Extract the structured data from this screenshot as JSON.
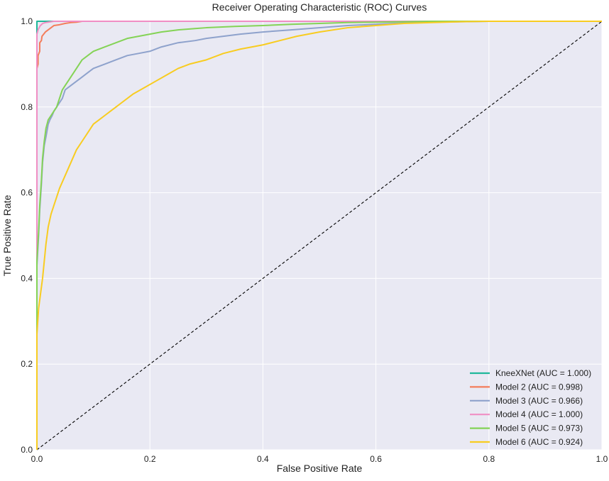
{
  "chart_data": {
    "type": "line",
    "title": "Receiver Operating Characteristic (ROC) Curves",
    "xlabel": "False Positive Rate",
    "ylabel": "True Positive Rate",
    "xlim": [
      0.0,
      1.0
    ],
    "ylim": [
      0.0,
      1.0
    ],
    "xticks": [
      "0.0",
      "0.2",
      "0.4",
      "0.6",
      "0.8",
      "1.0"
    ],
    "yticks": [
      "0.0",
      "0.2",
      "0.4",
      "0.6",
      "0.8",
      "1.0"
    ],
    "grid": true,
    "legend_position": "bottom-right",
    "background_color": "#e9e9f3",
    "diagonal": {
      "x": [
        0,
        1
      ],
      "y": [
        0,
        1
      ],
      "style": "dashed",
      "color": "#000000"
    },
    "series": [
      {
        "name": "KneeXNet (AUC = 1.000)",
        "color": "#1fb89a",
        "x": [
          0.0,
          0.0,
          1.0
        ],
        "y": [
          0.0,
          1.0,
          1.0
        ]
      },
      {
        "name": "Model 2 (AUC = 0.998)",
        "color": "#f47d5b",
        "x": [
          0.0,
          0.0,
          0.002,
          0.002,
          0.005,
          0.005,
          0.008,
          0.009,
          0.012,
          0.015,
          0.02,
          0.025,
          0.03,
          0.04,
          0.05,
          0.06,
          0.07,
          0.08,
          1.0
        ],
        "y": [
          0.0,
          0.89,
          0.9,
          0.92,
          0.93,
          0.95,
          0.955,
          0.965,
          0.97,
          0.975,
          0.98,
          0.985,
          0.99,
          0.992,
          0.995,
          0.997,
          0.998,
          1.0,
          1.0
        ]
      },
      {
        "name": "Model 3 (AUC = 0.966)",
        "color": "#8ea2cc",
        "x": [
          0.0,
          0.0,
          0.003,
          0.005,
          0.008,
          0.01,
          0.013,
          0.016,
          0.02,
          0.023,
          0.027,
          0.03,
          0.035,
          0.04,
          0.045,
          0.05,
          0.06,
          0.07,
          0.08,
          0.09,
          0.1,
          0.12,
          0.14,
          0.16,
          0.18,
          0.2,
          0.22,
          0.25,
          0.28,
          0.3,
          0.33,
          0.36,
          0.4,
          0.45,
          0.5,
          0.55,
          0.6,
          0.65,
          0.7,
          0.75,
          0.8,
          1.0
        ],
        "y": [
          0.0,
          0.43,
          0.5,
          0.56,
          0.62,
          0.67,
          0.71,
          0.73,
          0.76,
          0.77,
          0.78,
          0.79,
          0.8,
          0.81,
          0.82,
          0.84,
          0.85,
          0.86,
          0.87,
          0.88,
          0.89,
          0.9,
          0.91,
          0.92,
          0.925,
          0.93,
          0.94,
          0.95,
          0.955,
          0.96,
          0.965,
          0.97,
          0.975,
          0.98,
          0.985,
          0.99,
          0.993,
          0.996,
          0.998,
          0.999,
          1.0,
          1.0
        ]
      },
      {
        "name": "Model 4 (AUC = 1.000)",
        "color": "#f08ec4",
        "x": [
          0.0,
          0.0,
          0.001,
          0.002,
          0.004,
          0.006,
          0.008,
          0.01,
          0.015,
          0.02,
          0.03,
          1.0
        ],
        "y": [
          0.0,
          0.97,
          0.975,
          0.98,
          0.985,
          0.99,
          0.992,
          0.995,
          0.997,
          0.998,
          1.0,
          1.0
        ]
      },
      {
        "name": "Model 5 (AUC = 0.973)",
        "color": "#84d356",
        "x": [
          0.0,
          0.0,
          0.003,
          0.005,
          0.008,
          0.01,
          0.013,
          0.016,
          0.02,
          0.025,
          0.03,
          0.035,
          0.04,
          0.045,
          0.05,
          0.055,
          0.06,
          0.07,
          0.08,
          0.09,
          0.1,
          0.12,
          0.14,
          0.16,
          0.18,
          0.2,
          0.22,
          0.25,
          0.28,
          0.3,
          0.35,
          0.4,
          0.45,
          0.5,
          0.55,
          0.6,
          0.65,
          0.7,
          1.0
        ],
        "y": [
          0.0,
          0.44,
          0.51,
          0.57,
          0.63,
          0.68,
          0.72,
          0.75,
          0.77,
          0.78,
          0.79,
          0.8,
          0.82,
          0.84,
          0.85,
          0.86,
          0.87,
          0.89,
          0.91,
          0.92,
          0.93,
          0.94,
          0.95,
          0.96,
          0.965,
          0.97,
          0.975,
          0.98,
          0.983,
          0.985,
          0.988,
          0.99,
          0.993,
          0.995,
          0.997,
          0.998,
          0.999,
          1.0,
          1.0
        ]
      },
      {
        "name": "Model 6 (AUC = 0.924)",
        "color": "#f8cc20",
        "x": [
          0.0,
          0.0,
          0.003,
          0.006,
          0.01,
          0.013,
          0.016,
          0.02,
          0.025,
          0.03,
          0.035,
          0.04,
          0.05,
          0.06,
          0.07,
          0.08,
          0.09,
          0.1,
          0.11,
          0.12,
          0.13,
          0.14,
          0.15,
          0.17,
          0.19,
          0.21,
          0.23,
          0.25,
          0.27,
          0.3,
          0.33,
          0.36,
          0.4,
          0.43,
          0.46,
          0.5,
          0.55,
          0.6,
          0.65,
          0.7,
          0.75,
          0.8,
          1.0
        ],
        "y": [
          0.0,
          0.27,
          0.33,
          0.36,
          0.4,
          0.44,
          0.48,
          0.52,
          0.55,
          0.57,
          0.59,
          0.61,
          0.64,
          0.67,
          0.7,
          0.72,
          0.74,
          0.76,
          0.77,
          0.78,
          0.79,
          0.8,
          0.81,
          0.83,
          0.845,
          0.86,
          0.875,
          0.89,
          0.9,
          0.91,
          0.925,
          0.935,
          0.945,
          0.955,
          0.965,
          0.975,
          0.985,
          0.99,
          0.995,
          0.997,
          0.999,
          1.0,
          1.0
        ]
      }
    ]
  }
}
